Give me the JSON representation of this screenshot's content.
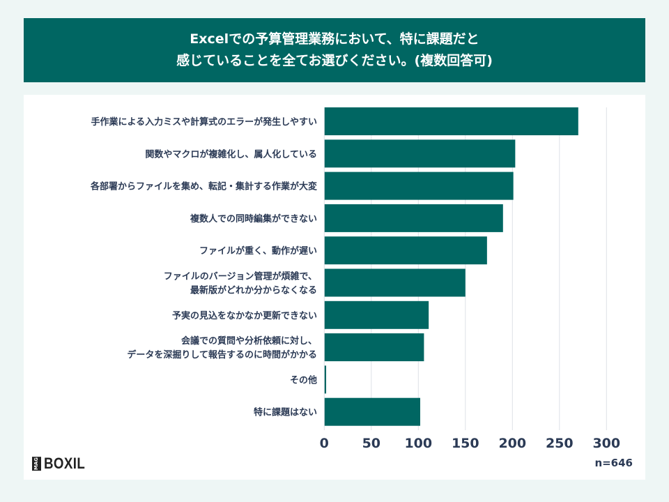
{
  "title": {
    "line1": "Excelでの予算管理業務において、特に課題だと",
    "line2": "感じていることを全てお選びください。(複数回答可)"
  },
  "logo": {
    "mag": "MAG",
    "brand": "BOXIL"
  },
  "sample_size": "n=646",
  "colors": {
    "bar": "#006662",
    "title_bg": "#006662",
    "text": "#2b3a55",
    "grid": "#dde1e6"
  },
  "chart_data": {
    "type": "bar",
    "orientation": "horizontal",
    "categories": [
      [
        "手作業による入力ミスや計算式のエラーが発生しやすい"
      ],
      [
        "関数やマクロが複雑化し、属人化している"
      ],
      [
        "各部署からファイルを集め、転記・集計する作業が大変"
      ],
      [
        "複数人での同時編集ができない"
      ],
      [
        "ファイルが重く、動作が遅い"
      ],
      [
        "ファイルのバージョン管理が煩雑で、",
        "最新版がどれか分からなくなる"
      ],
      [
        "予実の見込をなかなか更新できない"
      ],
      [
        "会議での質問や分析依頼に対し、",
        "データを深掘りして報告するのに時間がかかる"
      ],
      [
        "その他"
      ],
      [
        "特に課題はない"
      ]
    ],
    "values": [
      270,
      203,
      201,
      190,
      173,
      150,
      111,
      106,
      2,
      102
    ],
    "xlim": [
      0,
      300
    ],
    "xticks": [
      "0",
      "50",
      "100",
      "150",
      "200",
      "250",
      "300"
    ],
    "grid": true
  }
}
